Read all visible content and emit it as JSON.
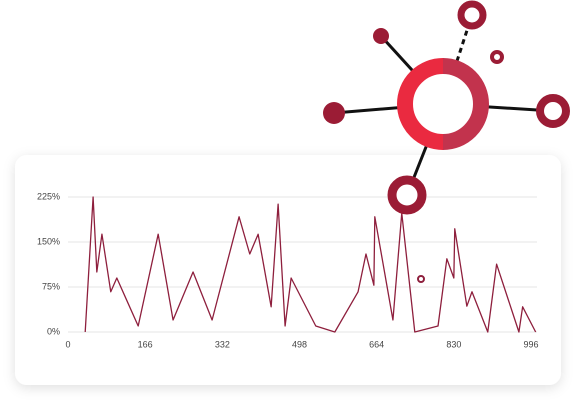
{
  "chart_data": {
    "type": "line",
    "x": [
      37,
      54,
      62,
      73,
      92,
      105,
      151,
      194,
      226,
      269,
      310,
      368,
      391,
      409,
      437,
      452,
      467,
      480,
      533,
      574,
      624,
      641,
      658,
      660,
      699,
      718,
      746,
      796,
      815,
      830,
      832,
      858,
      869,
      903,
      922,
      970,
      978,
      1006
    ],
    "series": [
      {
        "color": "#8e1f3d",
        "values": [
          0,
          225,
          100,
          163,
          67,
          90,
          10,
          163,
          20,
          100,
          20,
          192,
          130,
          163,
          42,
          213,
          10,
          90,
          10,
          0,
          67,
          130,
          78,
          192,
          20,
          198,
          0,
          10,
          122,
          90,
          172,
          43,
          67,
          0,
          113,
          0,
          42,
          0
        ]
      }
    ],
    "xlim": [
      0,
      996
    ],
    "xticks": [
      0,
      166,
      332,
      498,
      664,
      830,
      996
    ],
    "ylim": [
      0,
      225
    ],
    "yticks": [
      {
        "value": 0,
        "label": "0%"
      },
      {
        "value": 75,
        "label": "75%"
      },
      {
        "value": 150,
        "label": "150%"
      },
      {
        "value": 225,
        "label": "225%"
      }
    ],
    "grid": true
  }
}
